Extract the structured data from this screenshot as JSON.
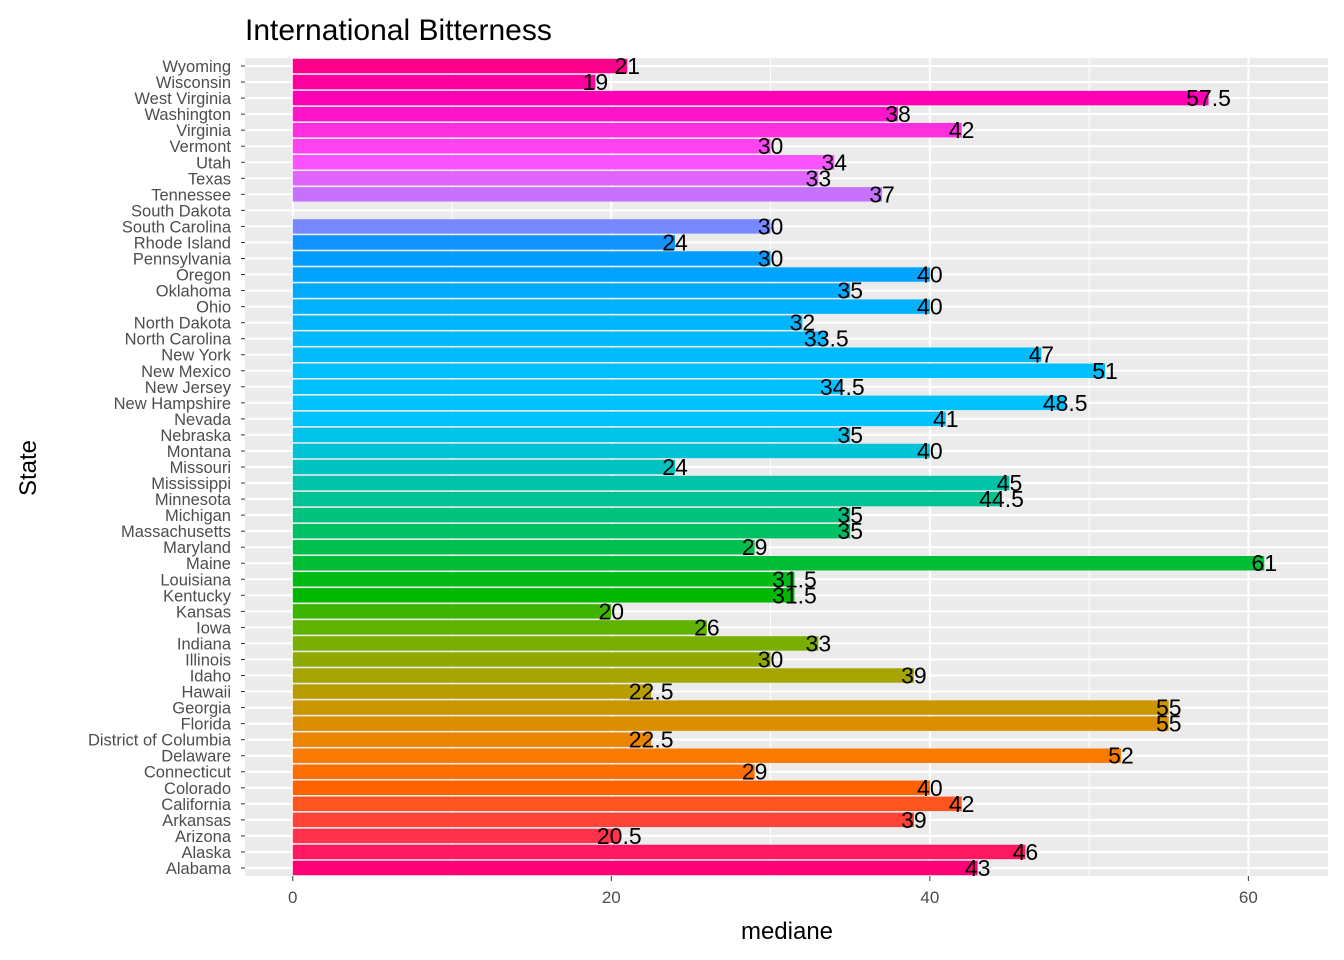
{
  "chart_data": {
    "type": "bar",
    "orientation": "horizontal",
    "title": "International Bitterness",
    "xlabel": "mediane",
    "ylabel": "State",
    "xlim": [
      -3,
      65
    ],
    "xticks": [
      0,
      20,
      40,
      60
    ],
    "grid": true,
    "legend": "none",
    "categories": [
      "Alabama",
      "Alaska",
      "Arizona",
      "Arkansas",
      "California",
      "Colorado",
      "Connecticut",
      "Delaware",
      "District of Columbia",
      "Florida",
      "Georgia",
      "Hawaii",
      "Idaho",
      "Illinois",
      "Indiana",
      "Iowa",
      "Kansas",
      "Kentucky",
      "Louisiana",
      "Maine",
      "Maryland",
      "Massachusetts",
      "Michigan",
      "Minnesota",
      "Mississippi",
      "Missouri",
      "Montana",
      "Nebraska",
      "Nevada",
      "New Hampshire",
      "New Jersey",
      "New Mexico",
      "New York",
      "North Carolina",
      "North Dakota",
      "Ohio",
      "Oklahoma",
      "Oregon",
      "Pennsylvania",
      "Rhode Island",
      "South Carolina",
      "South Dakota",
      "Tennessee",
      "Texas",
      "Utah",
      "Vermont",
      "Virginia",
      "Washington",
      "West Virginia",
      "Wisconsin",
      "Wyoming"
    ],
    "values": [
      43,
      46,
      20.5,
      39,
      42,
      40,
      29,
      52,
      22.5,
      55,
      55,
      22.5,
      39,
      30,
      33,
      26,
      20,
      31.5,
      31.5,
      61,
      29,
      35,
      35,
      44.5,
      45,
      24,
      40,
      35,
      41,
      48.5,
      34.5,
      51,
      47,
      33.5,
      32,
      40,
      35,
      40,
      30,
      24,
      30,
      null,
      37,
      33,
      34,
      30,
      42,
      38,
      57.5,
      19,
      21
    ],
    "labels": [
      "43",
      "46",
      "20.5",
      "39",
      "42",
      "40",
      "29",
      "52",
      "22.5",
      "55",
      "55",
      "22.5",
      "39",
      "30",
      "33",
      "26",
      "20",
      "31.5",
      "31.5",
      "61",
      "29",
      "35",
      "35",
      "44.5",
      "45",
      "24",
      "40",
      "35",
      "41",
      "48.5",
      "34.5",
      "51",
      "47",
      "33.5",
      "32",
      "40",
      "35",
      "40",
      "30",
      "24",
      "30",
      "",
      "37",
      "33",
      "34",
      "30",
      "42",
      "38",
      "57.5",
      "19",
      "21"
    ]
  }
}
